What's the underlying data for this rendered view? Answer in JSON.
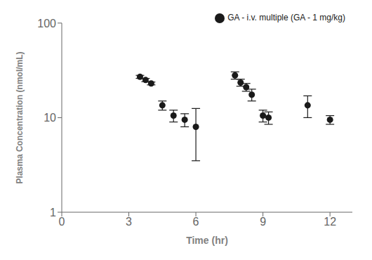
{
  "chart_data": {
    "type": "scatter",
    "xlabel": "Time (hr)",
    "ylabel": "Plasma Concentration (nmol/mL)",
    "x": [
      3.5,
      3.75,
      4.0,
      4.5,
      5.0,
      5.5,
      6.0,
      7.75,
      8.0,
      8.25,
      8.5,
      9.0,
      9.25,
      11.0,
      12.0
    ],
    "series": [
      {
        "name": "GA - i.v. multiple (GA - 1 mg/kg)",
        "color": "#1a1a1a",
        "marker": "o",
        "values": [
          27.0,
          25.0,
          23.0,
          13.5,
          10.5,
          9.5,
          8.0,
          28.0,
          23.5,
          21.0,
          17.5,
          10.5,
          10.0,
          13.5,
          9.5
        ],
        "errors": [
          1.0,
          1.0,
          0.8,
          1.5,
          1.5,
          1.5,
          4.5,
          2.5,
          2.0,
          2.0,
          2.5,
          1.5,
          1.5,
          3.5,
          1.0
        ]
      }
    ],
    "xlim": [
      0,
      13
    ],
    "xticks": [
      0,
      3,
      6,
      9,
      12
    ],
    "ylim": [
      1,
      100
    ],
    "yticks": [
      1,
      10,
      100
    ],
    "log": "y",
    "grid": false,
    "legend": "upper right"
  }
}
